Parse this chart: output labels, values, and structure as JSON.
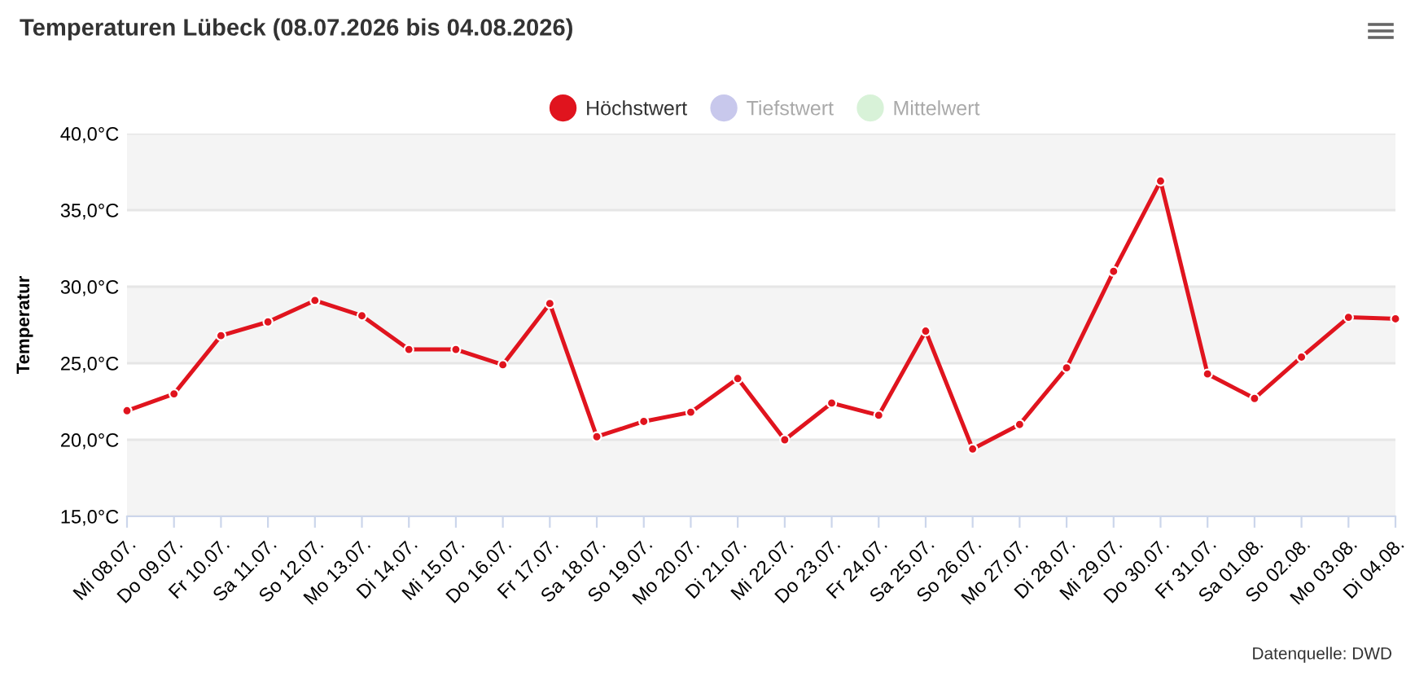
{
  "chart_data": {
    "type": "line",
    "title": "Temperaturen Lübeck (08.07.2026 bis 04.08.2026)",
    "ylabel": "Temperatur",
    "categories": [
      "Mi 08.07.",
      "Do 09.07.",
      "Fr 10.07.",
      "Sa 11.07.",
      "So 12.07.",
      "Mo 13.07.",
      "Di 14.07.",
      "Mi 15.07.",
      "Do 16.07.",
      "Fr 17.07.",
      "Sa 18.07.",
      "So 19.07.",
      "Mo 20.07.",
      "Di 21.07.",
      "Mi 22.07.",
      "Do 23.07.",
      "Fr 24.07.",
      "Sa 25.07.",
      "So 26.07.",
      "Mo 27.07.",
      "Di 28.07.",
      "Mi 29.07.",
      "Do 30.07.",
      "Fr 31.07.",
      "Sa 01.08.",
      "So 02.08.",
      "Mo 03.08.",
      "Di 04.08."
    ],
    "series": [
      {
        "name": "Höchstwert",
        "color": "#e0141e",
        "values": [
          21.9,
          23.0,
          26.8,
          27.7,
          29.1,
          28.1,
          25.9,
          25.9,
          24.9,
          28.9,
          20.2,
          21.2,
          21.8,
          24.0,
          20.0,
          22.4,
          21.6,
          27.1,
          19.4,
          21.0,
          24.7,
          31.0,
          36.9,
          24.3,
          22.7,
          25.4,
          28.0,
          27.9
        ]
      },
      {
        "name": "Tiefstwert",
        "color": "#c8c8ec",
        "values": [
          null,
          null,
          null,
          null,
          null,
          null,
          null,
          null,
          null,
          null,
          null,
          null,
          null,
          null,
          null,
          null,
          null,
          null,
          null,
          null,
          null,
          null,
          null,
          null,
          null,
          null,
          null,
          null
        ]
      },
      {
        "name": "Mittelwert",
        "color": "#d8f2d8",
        "values": [
          null,
          null,
          null,
          null,
          null,
          null,
          null,
          null,
          null,
          null,
          null,
          null,
          null,
          null,
          null,
          null,
          null,
          null,
          null,
          null,
          null,
          null,
          null,
          null,
          null,
          null,
          null,
          null
        ]
      }
    ],
    "ylim": [
      15,
      40
    ],
    "yticks": [
      {
        "value": 15,
        "label": "15,0°C"
      },
      {
        "value": 20,
        "label": "20,0°C"
      },
      {
        "value": 25,
        "label": "25,0°C"
      },
      {
        "value": 30,
        "label": "30,0°C"
      },
      {
        "value": 35,
        "label": "35,0°C"
      },
      {
        "value": 40,
        "label": "40,0°C"
      }
    ],
    "bands": [
      {
        "axis": "y",
        "from": 15,
        "to": 20,
        "color": "#f4f4f4"
      },
      {
        "axis": "y",
        "from": 25,
        "to": 30,
        "color": "#f4f4f4"
      },
      {
        "axis": "y",
        "from": 35,
        "to": 40,
        "color": "#f4f4f4"
      }
    ],
    "grid": "y",
    "legend": "top",
    "marker": "circle",
    "line_style": "solid",
    "annotations": [
      "Datenquelle: DWD"
    ]
  }
}
